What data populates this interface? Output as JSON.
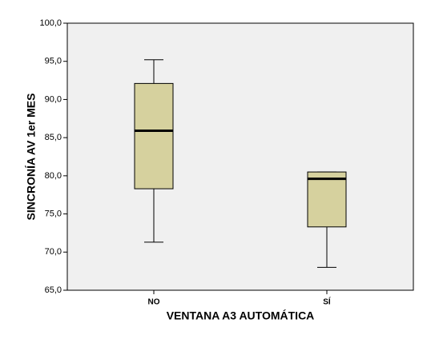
{
  "chart_data": {
    "type": "box",
    "x_label": "VENTANA A3 AUTOMÁTICA",
    "y_label": "SINCRONÍA AV 1er MES",
    "categories": [
      "NO",
      "SÍ"
    ],
    "min": [
      71.3,
      68.0
    ],
    "q1": [
      78.3,
      73.3
    ],
    "median": [
      85.9,
      79.6
    ],
    "q3": [
      92.1,
      80.5
    ],
    "max": [
      95.2,
      80.5
    ],
    "color": "#d6d19e",
    "ylim": [
      65,
      100
    ],
    "yticks": [
      {
        "value": 65,
        "label": "65,0"
      },
      {
        "value": 70,
        "label": "70,0"
      },
      {
        "value": 75,
        "label": "75,0"
      },
      {
        "value": 80,
        "label": "80,0"
      },
      {
        "value": 85,
        "label": "85,0"
      },
      {
        "value": 90,
        "label": "90,0"
      },
      {
        "value": 95,
        "label": "95,0"
      },
      {
        "value": 100,
        "label": "100,0"
      }
    ]
  }
}
